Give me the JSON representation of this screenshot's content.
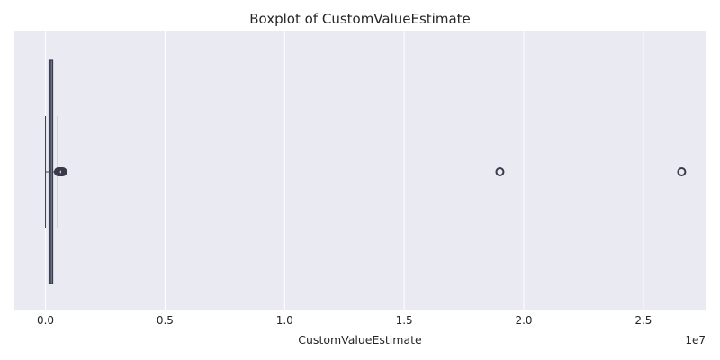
{
  "chart_data": {
    "type": "boxplot",
    "title": "Boxplot of CustomValueEstimate",
    "xlabel": "CustomValueEstimate",
    "ylabel": "",
    "scale_multiplier_label": "1e7",
    "xlim": [
      -1300000,
      27600000
    ],
    "x_ticks": [
      0,
      5000000,
      10000000,
      15000000,
      20000000,
      25000000
    ],
    "x_tick_labels": [
      "0.0",
      "0.5",
      "1.0",
      "1.5",
      "2.0",
      "2.5"
    ],
    "grid": true,
    "orientation": "horizontal",
    "box": {
      "whisker_low": 0,
      "q1": 150000,
      "median": 200000,
      "q3": 300000,
      "whisker_high": 520000
    },
    "outliers": [
      540000,
      570000,
      600000,
      630000,
      660000,
      690000,
      720000,
      19000000,
      26600000
    ],
    "colors": {
      "background": "#eaeaf2",
      "grid": "#ffffff",
      "box_fill": "#6a7a8c",
      "box_edge": "#3a3a4a",
      "text": "#262626"
    }
  }
}
